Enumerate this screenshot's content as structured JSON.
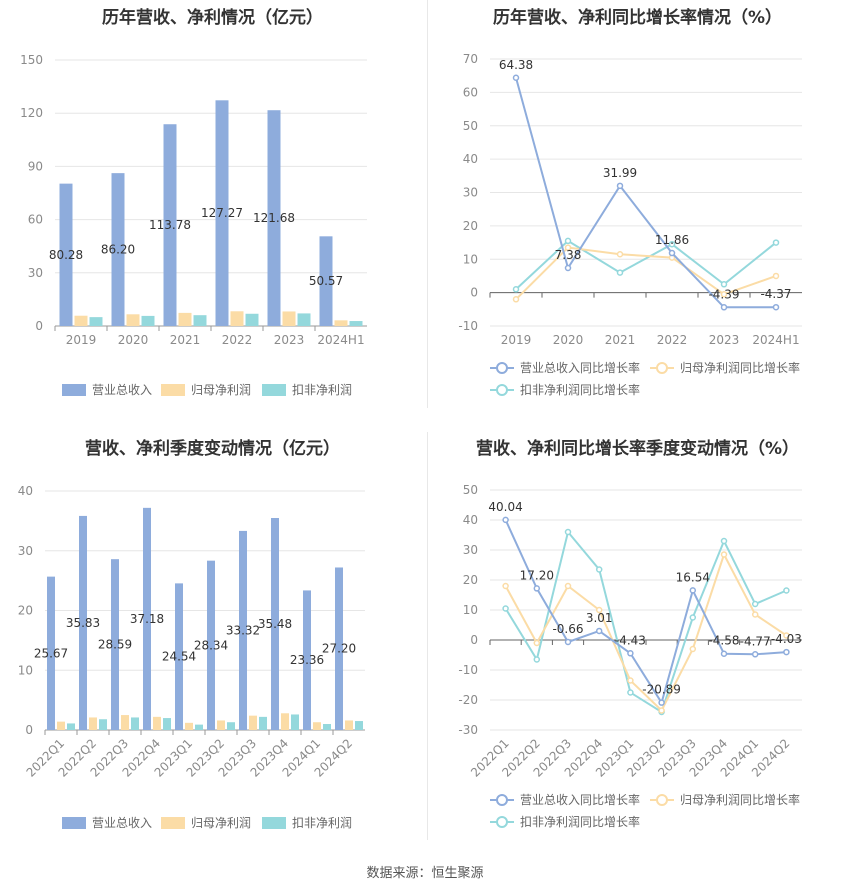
{
  "colors": {
    "revenue": "#8eacdc",
    "parent_profit": "#fbdca6",
    "deducted_profit": "#94d8dc",
    "revenue_line": "#8eacdc",
    "parent_line": "#fbdca6",
    "deducted_line": "#94d8dc"
  },
  "footer": "数据来源：恒生聚源",
  "chart_data": [
    {
      "type": "bar",
      "title": "历年营收、净利情况（亿元）",
      "categories": [
        "2019",
        "2020",
        "2021",
        "2022",
        "2023",
        "2024H1"
      ],
      "ylim": [
        0,
        150
      ],
      "yticks": [
        0,
        30,
        60,
        90,
        120,
        150
      ],
      "series": [
        {
          "name": "营业总收入",
          "values": [
            80.28,
            86.2,
            113.78,
            127.27,
            121.68,
            50.57
          ],
          "labels": [
            "80.28",
            "86.20",
            "113.78",
            "127.27",
            "121.68",
            "50.57"
          ]
        },
        {
          "name": "归母净利润",
          "values": [
            5.8,
            6.6,
            7.4,
            8.3,
            8.2,
            3.2
          ]
        },
        {
          "name": "扣非净利润",
          "values": [
            5.0,
            5.7,
            6.1,
            6.9,
            7.1,
            2.8
          ]
        }
      ],
      "legend": "bottom",
      "grid": true
    },
    {
      "type": "line",
      "title": "历年营收、净利同比增长率情况（%）",
      "categories": [
        "2019",
        "2020",
        "2021",
        "2022",
        "2023",
        "2024H1"
      ],
      "ylim": [
        -10,
        70
      ],
      "yticks": [
        -10,
        0,
        10,
        20,
        30,
        40,
        50,
        60,
        70
      ],
      "series": [
        {
          "name": "营业总收入同比增长率",
          "values": [
            64.38,
            7.38,
            31.99,
            11.86,
            -4.39,
            -4.37
          ],
          "labels": [
            "64.38",
            "7.38",
            "31.99",
            "11.86",
            "-4.39",
            "-4.37"
          ]
        },
        {
          "name": "归母净利润同比增长率",
          "values": [
            -2.0,
            13.5,
            11.5,
            10.5,
            -0.5,
            5.0
          ]
        },
        {
          "name": "扣非净利润同比增长率",
          "values": [
            1.0,
            15.5,
            6.0,
            14.5,
            2.5,
            15.0
          ]
        }
      ],
      "legend": "bottom",
      "grid": true
    },
    {
      "type": "bar",
      "title": "营收、净利季度变动情况（亿元）",
      "categories": [
        "2022Q1",
        "2022Q2",
        "2022Q3",
        "2022Q4",
        "2023Q1",
        "2023Q2",
        "2023Q3",
        "2023Q4",
        "2024Q1",
        "2024Q2"
      ],
      "ylim": [
        0,
        40
      ],
      "yticks": [
        0,
        10,
        20,
        30,
        40
      ],
      "series": [
        {
          "name": "营业总收入",
          "values": [
            25.67,
            35.83,
            28.59,
            37.18,
            24.54,
            28.34,
            33.32,
            35.48,
            23.36,
            27.2
          ],
          "labels": [
            "25.67",
            "35.83",
            "28.59",
            "37.18",
            "24.54",
            "28.34",
            "33.32",
            "35.48",
            "23.36",
            "27.20"
          ]
        },
        {
          "name": "归母净利润",
          "values": [
            1.4,
            2.1,
            2.5,
            2.2,
            1.2,
            1.6,
            2.4,
            2.8,
            1.3,
            1.6
          ]
        },
        {
          "name": "扣非净利润",
          "values": [
            1.1,
            1.8,
            2.1,
            2.0,
            0.9,
            1.3,
            2.2,
            2.6,
            1.0,
            1.5
          ]
        }
      ],
      "legend": "bottom",
      "grid": true
    },
    {
      "type": "line",
      "title": "营收、净利同比增长率季度变动情况（%）",
      "categories": [
        "2022Q1",
        "2022Q2",
        "2022Q3",
        "2022Q4",
        "2023Q1",
        "2023Q2",
        "2023Q3",
        "2023Q4",
        "2024Q1",
        "2024Q2"
      ],
      "ylim": [
        -30,
        50
      ],
      "yticks": [
        -30,
        -20,
        -10,
        0,
        10,
        20,
        30,
        40,
        50
      ],
      "series": [
        {
          "name": "营业总收入同比增长率",
          "values": [
            40.04,
            17.2,
            -0.66,
            3.01,
            -4.43,
            -20.89,
            16.54,
            -4.58,
            -4.77,
            -4.03
          ],
          "labels": [
            "40.04",
            "17.20",
            "-0.66",
            "3.01",
            "-4.43",
            "-20.89",
            "16.54",
            "-4.58",
            "-4.77",
            "-4.03"
          ]
        },
        {
          "name": "归母净利润同比增长率",
          "values": [
            18.0,
            -1.0,
            18.0,
            10.0,
            -13.5,
            -23.5,
            -3.0,
            28.5,
            8.5,
            1.5
          ]
        },
        {
          "name": "扣非净利润同比增长率",
          "values": [
            10.5,
            -6.5,
            36.0,
            23.5,
            -17.5,
            -24.0,
            7.5,
            33.0,
            12.0,
            16.5
          ]
        }
      ],
      "legend": "bottom",
      "grid": true
    }
  ]
}
